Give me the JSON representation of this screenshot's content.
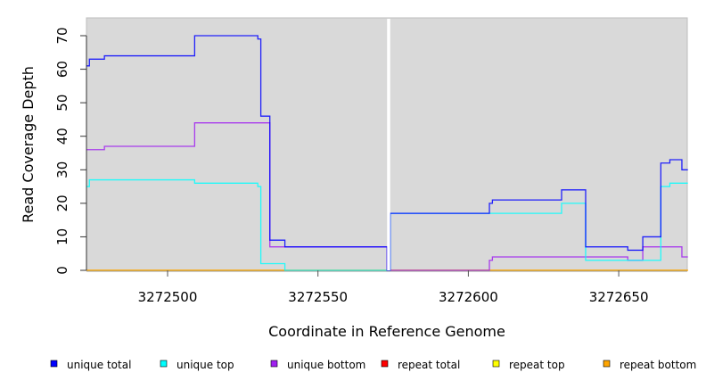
{
  "chart_data": {
    "type": "line",
    "step": true,
    "xlabel": "Coordinate in Reference Genome",
    "ylabel": "Read Coverage Depth",
    "xlim": [
      3272473,
      3272673
    ],
    "ylim": [
      0,
      74
    ],
    "xticks": [
      3272500,
      3272550,
      3272600,
      3272650
    ],
    "yticks": [
      0,
      10,
      20,
      30,
      40,
      50,
      60,
      70
    ],
    "gap_at": 3272573.5,
    "legend_position": "bottom",
    "series": [
      {
        "name": "unique total",
        "color": "#0000ff",
        "steps": [
          [
            3272473,
            61
          ],
          [
            3272474,
            63
          ],
          [
            3272479,
            64
          ],
          [
            3272509,
            70
          ],
          [
            3272530,
            69
          ],
          [
            3272531,
            46
          ],
          [
            3272534,
            9
          ],
          [
            3272539,
            7
          ],
          [
            3272573,
            0
          ],
          [
            3272574,
            17
          ],
          [
            3272607,
            20
          ],
          [
            3272608,
            21
          ],
          [
            3272631,
            24
          ],
          [
            3272639,
            7
          ],
          [
            3272653,
            6
          ],
          [
            3272658,
            10
          ],
          [
            3272664,
            32
          ],
          [
            3272667,
            33
          ],
          [
            3272671,
            30
          ],
          [
            3272673,
            30
          ]
        ]
      },
      {
        "name": "unique top",
        "color": "#00ffff",
        "steps": [
          [
            3272473,
            25
          ],
          [
            3272474,
            27
          ],
          [
            3272509,
            26
          ],
          [
            3272530,
            25
          ],
          [
            3272531,
            2
          ],
          [
            3272539,
            0
          ],
          [
            3272574,
            17
          ],
          [
            3272631,
            20
          ],
          [
            3272639,
            3
          ],
          [
            3272664,
            25
          ],
          [
            3272667,
            26
          ],
          [
            3272673,
            26
          ]
        ]
      },
      {
        "name": "unique bottom",
        "color": "#a020f0",
        "steps": [
          [
            3272473,
            36
          ],
          [
            3272479,
            37
          ],
          [
            3272509,
            44
          ],
          [
            3272534,
            7
          ],
          [
            3272573,
            0
          ],
          [
            3272607,
            3
          ],
          [
            3272608,
            4
          ],
          [
            3272653,
            3
          ],
          [
            3272658,
            7
          ],
          [
            3272671,
            4
          ],
          [
            3272673,
            4
          ]
        ]
      },
      {
        "name": "repeat total",
        "color": "#ff0000",
        "steps": [
          [
            3272473,
            0
          ],
          [
            3272673,
            0
          ]
        ]
      },
      {
        "name": "repeat top",
        "color": "#ffff00",
        "steps": [
          [
            3272473,
            0
          ],
          [
            3272673,
            0
          ]
        ]
      },
      {
        "name": "repeat bottom",
        "color": "#ffa500",
        "steps": [
          [
            3272473,
            0
          ],
          [
            3272673,
            0
          ]
        ]
      }
    ]
  }
}
